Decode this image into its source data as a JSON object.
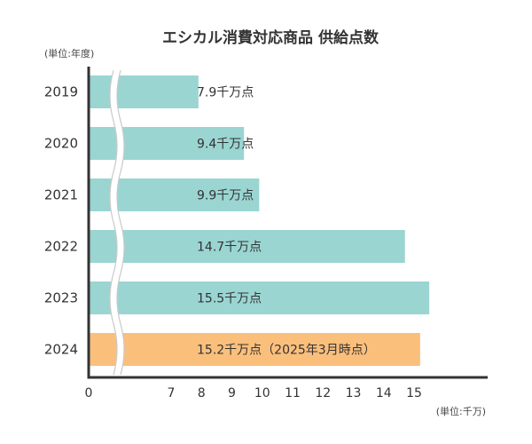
{
  "chart_data": {
    "type": "bar",
    "orientation": "horizontal",
    "title": "エシカル消費対応商品 供給点数",
    "y_unit_label": "(単位:年度)",
    "x_unit_label": "(単位:千万)",
    "categories": [
      "2019",
      "2020",
      "2021",
      "2022",
      "2023",
      "2024"
    ],
    "values": [
      7.9,
      9.4,
      9.9,
      14.7,
      15.5,
      15.2
    ],
    "data_labels": [
      "7.9千万点",
      "9.4千万点",
      "9.9千万点",
      "14.7千万点",
      "15.5千万点",
      "15.2千万点（2025年3月時点）"
    ],
    "x_ticks": [
      "0",
      "7",
      "8",
      "9",
      "10",
      "11",
      "12",
      "13",
      "14",
      "15"
    ],
    "axis_break": true,
    "xlim": [
      0,
      15.5
    ],
    "grid": false,
    "colors": {
      "bar": "#9ad5d2",
      "highlight_bar": "#fbbf7c",
      "axis": "#333333",
      "text": "#333333"
    },
    "highlight_index": 5
  }
}
